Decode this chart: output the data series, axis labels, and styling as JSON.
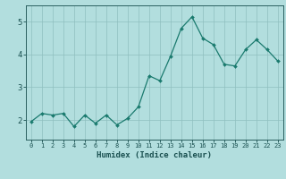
{
  "x": [
    0,
    1,
    2,
    3,
    4,
    5,
    6,
    7,
    8,
    9,
    10,
    11,
    12,
    13,
    14,
    15,
    16,
    17,
    18,
    19,
    20,
    21,
    22,
    23
  ],
  "y": [
    1.95,
    2.2,
    2.15,
    2.2,
    1.8,
    2.15,
    1.9,
    2.15,
    1.85,
    2.05,
    2.4,
    3.35,
    3.2,
    3.95,
    4.8,
    5.15,
    4.5,
    4.3,
    3.7,
    3.65,
    4.15,
    4.45,
    4.15,
    3.8
  ],
  "xlabel": "Humidex (Indice chaleur)",
  "bg_color": "#b2dede",
  "line_color": "#1a7a6e",
  "marker_color": "#1a7a6e",
  "grid_color": "#8fbfbf",
  "axis_color": "#2a6060",
  "text_color": "#1a5050",
  "xlim": [
    -0.5,
    23.5
  ],
  "ylim": [
    1.4,
    5.5
  ],
  "yticks": [
    2,
    3,
    4,
    5
  ],
  "xticks": [
    0,
    1,
    2,
    3,
    4,
    5,
    6,
    7,
    8,
    9,
    10,
    11,
    12,
    13,
    14,
    15,
    16,
    17,
    18,
    19,
    20,
    21,
    22,
    23
  ],
  "xlabel_fontsize": 6.5,
  "xtick_fontsize": 5.0,
  "ytick_fontsize": 6.5
}
